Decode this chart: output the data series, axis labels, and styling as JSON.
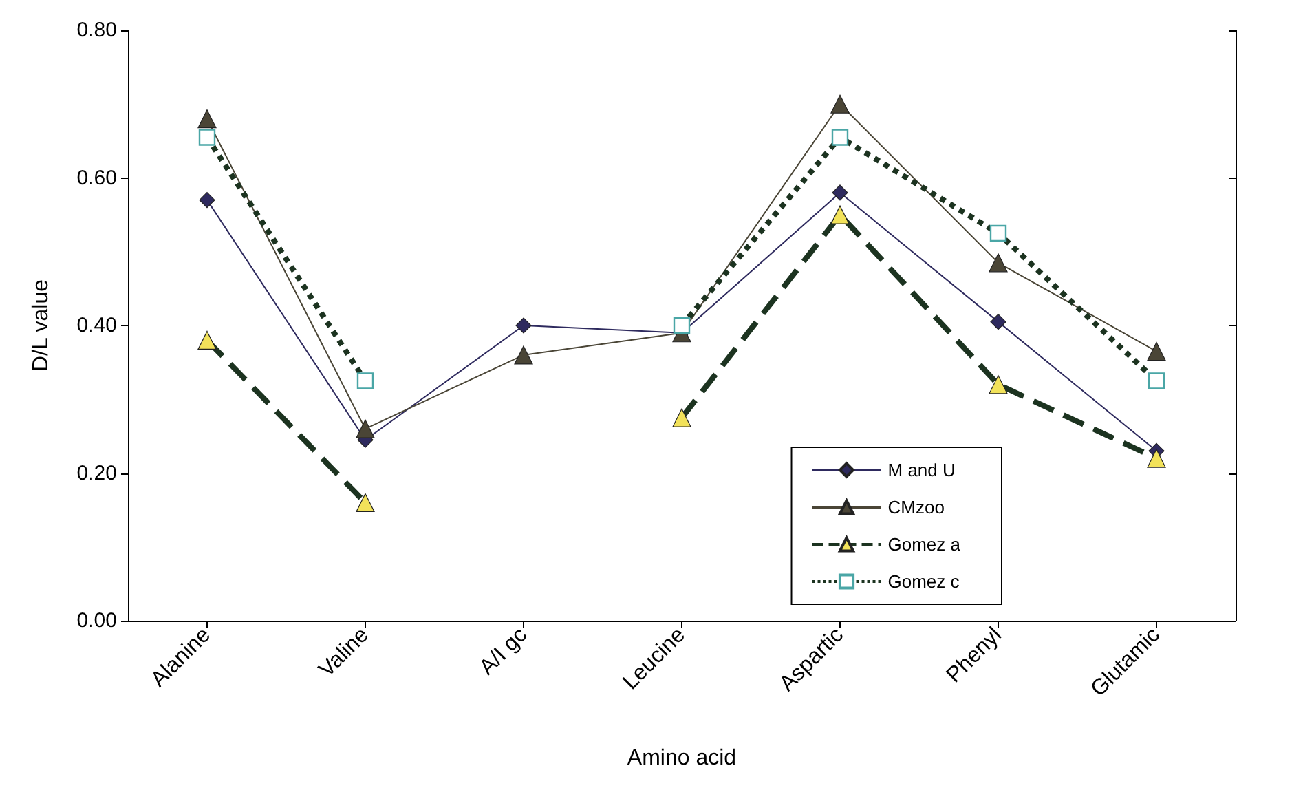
{
  "chart_data": {
    "type": "line",
    "xlabel": "Amino acid",
    "ylabel": "D/L value",
    "categories": [
      "Alanine",
      "Valine",
      "A/I gc",
      "Leucine",
      "Aspartic",
      "Phenyl",
      "Glutamic"
    ],
    "ylim": [
      0,
      0.8
    ],
    "yticks": [
      {
        "value": 0,
        "label": "0.00"
      },
      {
        "value": 0.2,
        "label": "0.20"
      },
      {
        "value": 0.4,
        "label": "0.40"
      },
      {
        "value": 0.6,
        "label": "0.60"
      },
      {
        "value": 0.8,
        "label": "0.80"
      }
    ],
    "grid": false,
    "legend": "bottom right",
    "series": [
      {
        "name": "M and U",
        "color": "#2e2a5e",
        "marker": "diamond",
        "line_style": "solid",
        "values": [
          0.57,
          0.245,
          0.4,
          0.39,
          0.58,
          0.405,
          0.23
        ]
      },
      {
        "name": "CMzoo",
        "color": "#4a4536",
        "marker": "triangle",
        "line_style": "solid",
        "values": [
          0.68,
          0.26,
          0.36,
          0.39,
          0.7,
          0.485,
          0.365
        ]
      },
      {
        "name": "Gomez a",
        "color": "#f2e25a",
        "marker": "triangle",
        "line_style": "dashed",
        "values": [
          0.38,
          0.16,
          null,
          0.275,
          0.55,
          0.32,
          0.22
        ]
      },
      {
        "name": "Gomez c",
        "color": "#4aa6a6",
        "marker": "square",
        "line_style": "dotted",
        "values": [
          0.655,
          0.325,
          null,
          0.4,
          0.655,
          0.525,
          0.325
        ]
      }
    ]
  }
}
